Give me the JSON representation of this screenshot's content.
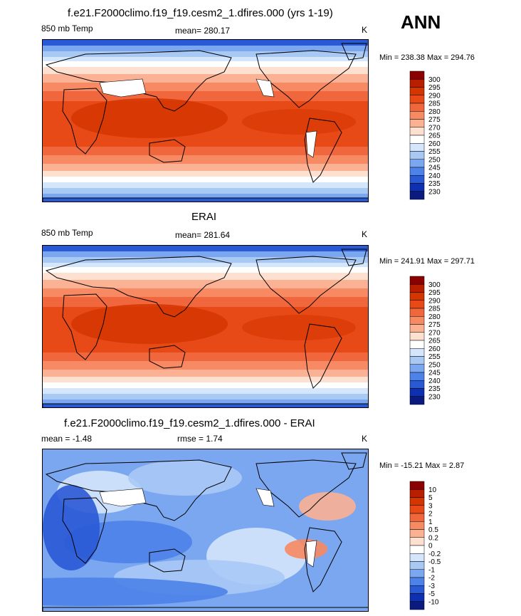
{
  "page": {
    "corner_label": "ANN"
  },
  "panels": [
    {
      "title": "f.e21.F2000climo.f19_f19.cesm2_1.dfires.000 (yrs 1-19)",
      "left_label": "850 mb Temp",
      "center_label": "mean= 280.17",
      "unit": "K",
      "minmax": "Min = 238.38 Max = 294.76",
      "colorbar": [
        "300",
        "295",
        "290",
        "285",
        "280",
        "275",
        "270",
        "265",
        "260",
        "255",
        "250",
        "245",
        "240",
        "235",
        "230"
      ],
      "colors": [
        "#8b0000",
        "#b81e00",
        "#d53500",
        "#e84a17",
        "#f0673d",
        "#f78a62",
        "#fbb194",
        "#fde0d0",
        "#ffffff",
        "#d4e6fb",
        "#a9c9f5",
        "#7aa7ef",
        "#4d82e8",
        "#2a59d6",
        "#0e2fb0",
        "#0a1a80"
      ]
    },
    {
      "title": "ERAI",
      "left_label": "850 mb Temp",
      "center_label": "mean= 281.64",
      "unit": "K",
      "minmax": "Min = 241.91 Max = 297.71",
      "colorbar": [
        "300",
        "295",
        "290",
        "285",
        "280",
        "275",
        "270",
        "265",
        "260",
        "255",
        "250",
        "245",
        "240",
        "235",
        "230"
      ],
      "colors": [
        "#8b0000",
        "#b81e00",
        "#d53500",
        "#e84a17",
        "#f0673d",
        "#f78a62",
        "#fbb194",
        "#fde0d0",
        "#ffffff",
        "#d4e6fb",
        "#a9c9f5",
        "#7aa7ef",
        "#4d82e8",
        "#2a59d6",
        "#0e2fb0",
        "#0a1a80"
      ]
    },
    {
      "title": "f.e21.F2000climo.f19_f19.cesm2_1.dfires.000 - ERAI",
      "left_label": "mean =  -1.48",
      "center_label": "rmse =   1.74",
      "unit": "K",
      "minmax": "Min = -15.21 Max =   2.87",
      "colorbar": [
        "10",
        "5",
        "3",
        "2",
        "1",
        "0.5",
        "0.2",
        "0",
        "-0.2",
        "-0.5",
        "-1",
        "-2",
        "-3",
        "-5",
        "-10"
      ],
      "colors": [
        "#8b0000",
        "#b81e00",
        "#d53500",
        "#e84a17",
        "#f0673d",
        "#f78a62",
        "#fbb194",
        "#fde0d0",
        "#ffffff",
        "#d4e6fb",
        "#a9c9f5",
        "#7aa7ef",
        "#4d82e8",
        "#2a59d6",
        "#0e2fb0",
        "#0a1a80"
      ]
    }
  ],
  "chart_data": [
    {
      "type": "heatmap",
      "title": "f.e21.F2000climo.f19_f19.cesm2_1.dfires.000 (yrs 1-19)",
      "variable": "850 mb Temp",
      "unit": "K",
      "mean": 280.17,
      "min": 238.38,
      "max": 294.76,
      "contour_levels": [
        230,
        235,
        240,
        245,
        250,
        255,
        260,
        265,
        270,
        275,
        280,
        285,
        290,
        295,
        300
      ]
    },
    {
      "type": "heatmap",
      "title": "ERAI",
      "variable": "850 mb Temp",
      "unit": "K",
      "mean": 281.64,
      "min": 241.91,
      "max": 297.71,
      "contour_levels": [
        230,
        235,
        240,
        245,
        250,
        255,
        260,
        265,
        270,
        275,
        280,
        285,
        290,
        295,
        300
      ]
    },
    {
      "type": "heatmap",
      "title": "f.e21.F2000climo.f19_f19.cesm2_1.dfires.000 - ERAI",
      "unit": "K",
      "mean": -1.48,
      "rmse": 1.74,
      "min": -15.21,
      "max": 2.87,
      "contour_levels": [
        -10,
        -5,
        -3,
        -2,
        -1,
        -0.5,
        -0.2,
        0,
        0.2,
        0.5,
        1,
        2,
        3,
        5,
        10
      ]
    }
  ]
}
